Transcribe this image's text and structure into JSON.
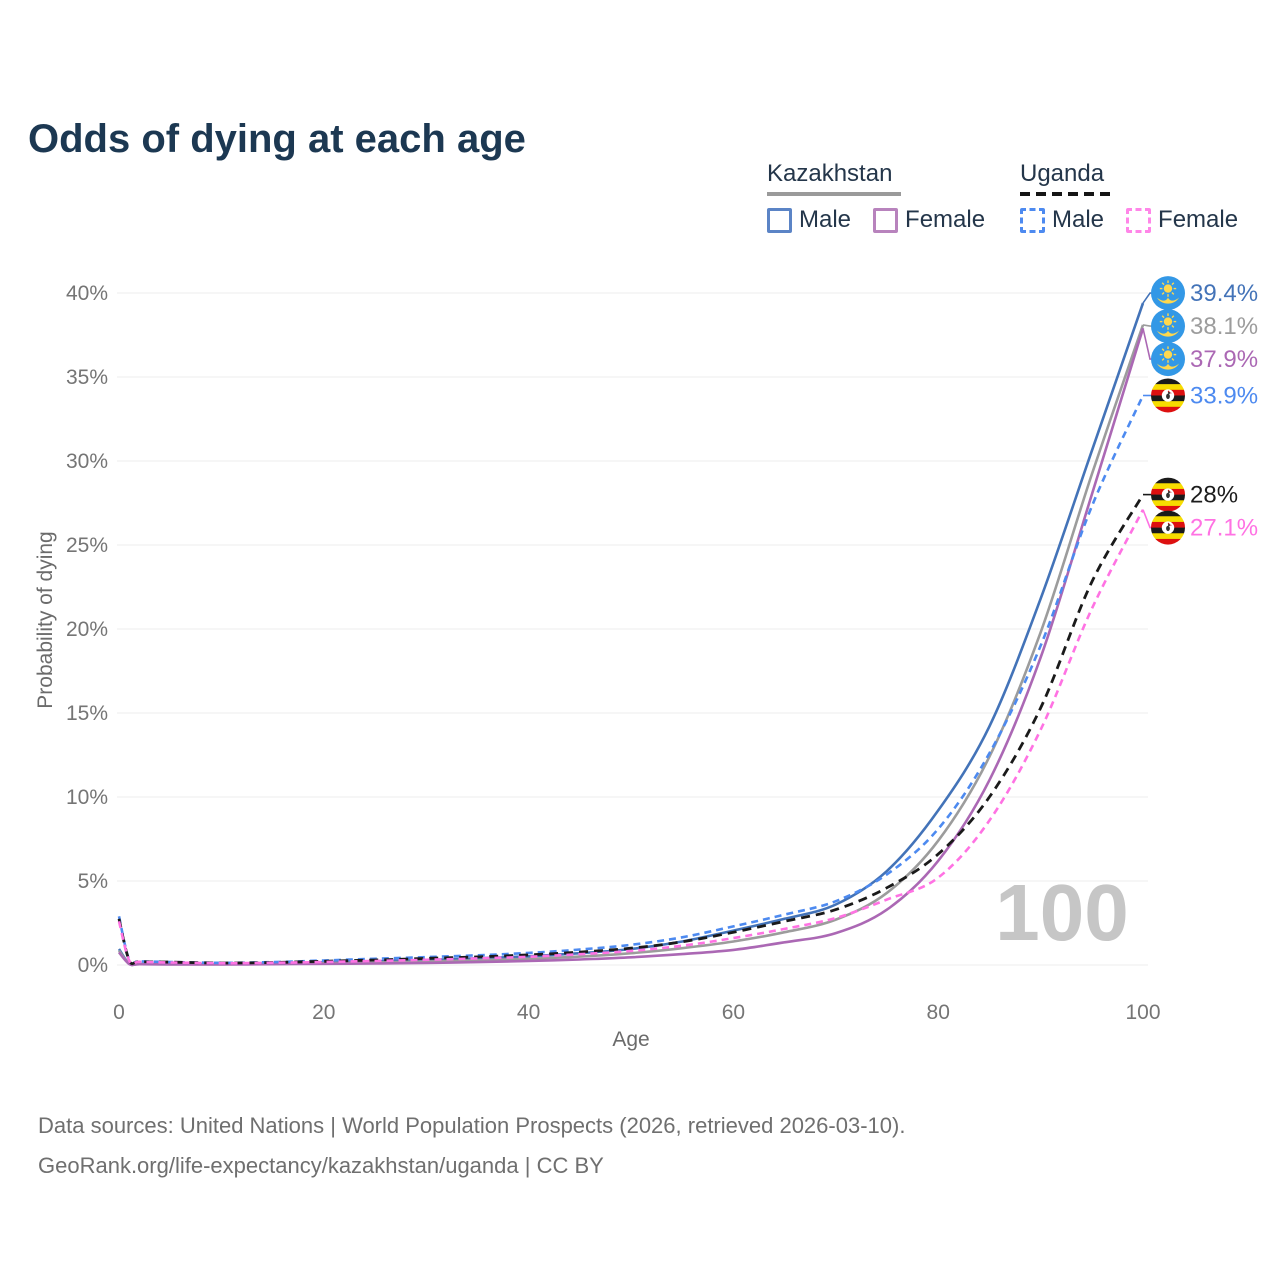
{
  "page": {
    "title": "Odds of dying at each age"
  },
  "legend": {
    "kazakhstan": {
      "label": "Kazakhstan",
      "male": "Male",
      "female": "Female"
    },
    "uganda": {
      "label": "Uganda",
      "male": "Male",
      "female": "Female"
    }
  },
  "footer": {
    "line1": "Data sources: United Nations | World Population Prospects (2026, retrieved 2026-03-10).",
    "line2": "GeoRank.org/life-expectancy/kazakhstan/uganda | CC BY"
  },
  "colors": {
    "title": "#1c3852",
    "grid": "#ececec",
    "tick_text": "#757575",
    "axis_title_text": "#6b6b6b",
    "watermark": "#c6c6c6",
    "kazakhstan_male": "#4373b8",
    "kazakhstan_total": "#9c9c9c",
    "kazakhstan_female": "#ab68b4",
    "uganda_male": "#4d8af0",
    "uganda_total": "#1a1a1a",
    "uganda_female": "#ff72e3",
    "kazakhstan_flag_blue": "#3398e6",
    "kazakhstan_flag_yellow": "#ffd84d",
    "uganda_flag_black": "#1a1a1a",
    "uganda_flag_yellow": "#f7dd00",
    "uganda_flag_red": "#dd1010"
  },
  "chart_data": {
    "type": "line",
    "title": "Odds of dying at each age",
    "xlabel": "Age",
    "ylabel": "Probability of dying",
    "xlim": [
      0,
      100
    ],
    "ylim": [
      0,
      40
    ],
    "x_ticks": [
      0,
      20,
      40,
      60,
      80,
      100
    ],
    "y_ticks": [
      "0%",
      "5%",
      "10%",
      "15%",
      "20%",
      "25%",
      "30%",
      "35%",
      "40%"
    ],
    "grid": "horizontal",
    "legend_position": "top-right",
    "watermark": "100",
    "ages": [
      0,
      1,
      2,
      5,
      10,
      15,
      20,
      25,
      30,
      35,
      40,
      45,
      50,
      55,
      60,
      65,
      70,
      75,
      80,
      85,
      90,
      95,
      100
    ],
    "series": [
      {
        "name": "Kazakhstan Male",
        "country": "kazakhstan",
        "sex": "male",
        "line": "solid",
        "color": "#4373b8",
        "dash": null,
        "end_label": "39.4%",
        "values": [
          0.95,
          0.08,
          0.06,
          0.05,
          0.05,
          0.09,
          0.16,
          0.22,
          0.3,
          0.4,
          0.52,
          0.7,
          0.95,
          1.4,
          2.05,
          2.75,
          3.6,
          5.6,
          9.2,
          14.2,
          21.8,
          30.6,
          39.4
        ]
      },
      {
        "name": "Kazakhstan",
        "country": "kazakhstan",
        "sex": "total",
        "line": "solid",
        "color": "#9c9c9c",
        "dash": null,
        "end_label": "38.1%",
        "values": [
          0.85,
          0.07,
          0.05,
          0.04,
          0.04,
          0.07,
          0.11,
          0.15,
          0.21,
          0.28,
          0.37,
          0.5,
          0.7,
          1.0,
          1.4,
          1.95,
          2.7,
          4.3,
          7.4,
          12.4,
          19.8,
          29.2,
          38.1
        ]
      },
      {
        "name": "Kazakhstan Female",
        "country": "kazakhstan",
        "sex": "female",
        "line": "solid",
        "color": "#ab68b4",
        "dash": null,
        "end_label": "37.9%",
        "values": [
          0.75,
          0.06,
          0.045,
          0.035,
          0.03,
          0.05,
          0.07,
          0.09,
          0.12,
          0.17,
          0.24,
          0.33,
          0.46,
          0.65,
          0.9,
          1.35,
          1.9,
          3.3,
          6.2,
          11.0,
          18.3,
          28.0,
          37.9
        ]
      },
      {
        "name": "Uganda Male",
        "country": "uganda",
        "sex": "male",
        "line": "dashed",
        "color": "#4d8af0",
        "dash": "7 5",
        "end_label": "33.9%",
        "values": [
          2.9,
          0.3,
          0.22,
          0.18,
          0.13,
          0.17,
          0.27,
          0.37,
          0.47,
          0.58,
          0.72,
          0.92,
          1.2,
          1.65,
          2.3,
          3.0,
          3.8,
          5.4,
          8.1,
          12.6,
          19.0,
          27.3,
          33.9
        ]
      },
      {
        "name": "Uganda",
        "country": "uganda",
        "sex": "total",
        "line": "dashed",
        "color": "#1a1a1a",
        "dash": "9 6",
        "end_label": "28%",
        "values": [
          2.75,
          0.28,
          0.2,
          0.17,
          0.12,
          0.15,
          0.22,
          0.3,
          0.39,
          0.48,
          0.6,
          0.77,
          1.0,
          1.38,
          1.95,
          2.6,
          3.3,
          4.6,
          6.6,
          10.0,
          15.3,
          22.8,
          28.0
        ]
      },
      {
        "name": "Uganda Female",
        "country": "uganda",
        "sex": "female",
        "line": "dashed",
        "color": "#ff72e3",
        "dash": "7 5",
        "end_label": "27.1%",
        "values": [
          2.6,
          0.26,
          0.19,
          0.15,
          0.11,
          0.13,
          0.18,
          0.24,
          0.31,
          0.39,
          0.49,
          0.64,
          0.84,
          1.15,
          1.6,
          2.15,
          2.8,
          3.9,
          5.2,
          8.6,
          14.0,
          21.2,
          27.1
        ]
      }
    ]
  }
}
